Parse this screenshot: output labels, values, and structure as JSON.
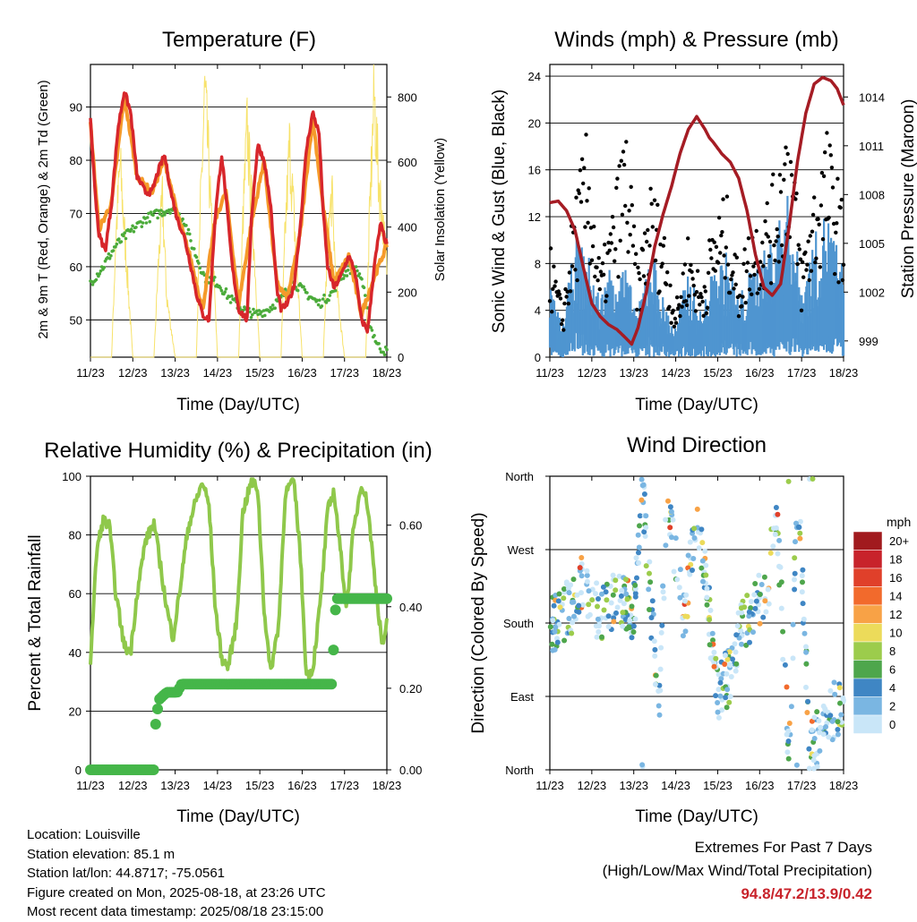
{
  "days": [
    "11/23",
    "12/23",
    "13/23",
    "14/23",
    "15/23",
    "16/23",
    "17/23",
    "18/23"
  ],
  "temperature": {
    "title": "Temperature (F)",
    "xlabel": "Time (Day/UTC)",
    "ylabel_left": "2m & 9m T (Red, Orange) & 2m Td (Green)",
    "ylabel_right": "Solar Insolation (Yellow)",
    "left_ticks": [
      "50",
      "60",
      "70",
      "80",
      "90"
    ],
    "right_ticks": [
      "0",
      "200",
      "400",
      "600",
      "800"
    ],
    "colors": {
      "t2m": "#d7262b",
      "t9m": "#f59a2a",
      "td": "#4bab3a",
      "solar": "#f7e26a"
    }
  },
  "winds": {
    "title": "Winds (mph) & Pressure (mb)",
    "xlabel": "Time (Day/UTC)",
    "ylabel_left": "Sonic Wind & Gust (Blue, Black)",
    "ylabel_right": "Station Pressure (Maroon)",
    "left_ticks": [
      "0",
      "4",
      "8",
      "12",
      "16",
      "20",
      "24"
    ],
    "right_ticks": [
      "999",
      "1002",
      "1005",
      "1008",
      "1011",
      "1014"
    ],
    "colors": {
      "wind": "#4f95d0",
      "gust": "#000000",
      "pressure": "#a51c24"
    }
  },
  "humidity": {
    "title": "Relative Humidity (%) & Precipitation (in)",
    "xlabel": "Time (Day/UTC)",
    "ylabel_left": "Percent & Total Rainfall",
    "left_ticks": [
      "0",
      "20",
      "40",
      "60",
      "80",
      "100"
    ],
    "right_ticks": [
      "0.00",
      "0.20",
      "0.40",
      "0.60"
    ],
    "colors": {
      "rh": "#8fc84b",
      "precip": "#45b649"
    }
  },
  "direction": {
    "title": "Wind Direction",
    "xlabel": "Time (Day/UTC)",
    "ylabel_left": "Direction (Colored By Speed)",
    "dir_labels": [
      "North",
      "East",
      "South",
      "West",
      "North"
    ],
    "legend_title": "mph",
    "legend_labels": [
      "20+",
      "18",
      "16",
      "14",
      "12",
      "10",
      "8",
      "6",
      "4",
      "2",
      "0"
    ],
    "legend_colors": [
      "#a11a1e",
      "#c8232b",
      "#e0402a",
      "#f26a2c",
      "#f8a246",
      "#ecdb5a",
      "#9ccc4c",
      "#4ea64c",
      "#3f86c4",
      "#7ab6e2",
      "#c9e6f8"
    ]
  },
  "info": {
    "location": "Location: Louisville",
    "elevation": "Station elevation: 85.1 m",
    "latlon": "Station lat/lon: 44.8717; -75.0561",
    "created": "Figure created on Mon, 2025-08-18, at 23:26 UTC",
    "recent": "Most recent data timestamp: 2025/08/18 23:15:00"
  },
  "extremes": {
    "line1": "Extremes For Past 7 Days",
    "line2": "(High/Low/Max Wind/Total Precipitation)",
    "values": "94.8/47.2/13.9/0.42"
  },
  "chart_data": [
    {
      "type": "line",
      "title": "Temperature (F)",
      "xlabel": "Time (Day/UTC)",
      "ylabel": "2m & 9m T (Red, Orange) & 2m Td (Green)",
      "y2label": "Solar Insolation (Yellow)",
      "x_range_days": [
        11,
        18
      ],
      "ylim": [
        43,
        98
      ],
      "y2lim": [
        0,
        900
      ],
      "series": [
        {
          "name": "2m T",
          "x": [
            11.0,
            11.1,
            11.2,
            11.35,
            11.5,
            11.65,
            11.8,
            11.95,
            12.1,
            12.3,
            12.45,
            12.6,
            12.75,
            12.9,
            13.05,
            13.2,
            13.35,
            13.5,
            13.65,
            13.8,
            13.95,
            14.1,
            14.2,
            14.35,
            14.5,
            14.6,
            14.7,
            14.8,
            14.95,
            15.1,
            15.25,
            15.4,
            15.5,
            15.65,
            15.8,
            15.95,
            16.1,
            16.25,
            16.4,
            16.5,
            16.6,
            16.75,
            16.9,
            17.1,
            17.25,
            17.4,
            17.55,
            17.7,
            17.85,
            18.0
          ],
          "values": [
            88,
            75,
            66,
            63,
            72,
            86,
            93,
            89,
            77,
            74,
            74,
            78,
            81,
            74,
            69,
            66,
            61,
            55,
            51,
            50,
            70,
            81,
            73,
            60,
            52,
            51,
            50,
            69,
            83,
            80,
            72,
            56,
            52,
            53,
            56,
            67,
            82,
            89,
            85,
            70,
            60,
            56,
            58,
            62,
            59,
            50,
            48,
            60,
            68,
            64
          ]
        },
        {
          "name": "9m T",
          "x": [
            11.0,
            11.2,
            11.5,
            11.8,
            12.1,
            12.45,
            12.75,
            13.05,
            13.35,
            13.65,
            13.95,
            14.2,
            14.5,
            14.8,
            15.1,
            15.4,
            15.65,
            15.95,
            16.25,
            16.5,
            16.75,
            17.1,
            17.4,
            17.7,
            18.0
          ],
          "values": [
            87,
            67,
            72,
            92,
            77,
            74,
            80,
            70,
            62,
            52,
            69,
            74,
            53,
            68,
            80,
            57,
            54,
            66,
            88,
            71,
            57,
            62,
            51,
            58,
            64
          ]
        },
        {
          "name": "2m Td",
          "x": [
            11.0,
            11.3,
            11.6,
            12.0,
            12.3,
            12.6,
            12.9,
            13.2,
            13.4,
            13.7,
            14.0,
            14.3,
            14.6,
            14.9,
            15.2,
            15.5,
            15.8,
            16.1,
            16.4,
            16.7,
            16.9,
            17.2,
            17.4,
            17.6,
            17.8,
            18.0
          ],
          "values": [
            57,
            60,
            64,
            67,
            69,
            70,
            71,
            69,
            64,
            58,
            57,
            54,
            52,
            51,
            52,
            54,
            57,
            55,
            53,
            55,
            58,
            60,
            58,
            49,
            45,
            44
          ]
        },
        {
          "name": "Solar Insolation",
          "x": [
            11.0,
            11.5,
            11.6,
            11.7,
            11.8,
            12.0,
            12.5,
            12.6,
            12.7,
            12.8,
            13.0,
            13.5,
            13.6,
            13.7,
            13.8,
            14.0,
            14.5,
            14.6,
            14.7,
            14.8,
            15.0,
            15.5,
            15.6,
            15.7,
            15.8,
            16.0,
            16.5,
            16.6,
            16.7,
            16.8,
            17.0,
            17.5,
            17.6,
            17.7,
            17.8,
            18.0
          ],
          "values": [
            0,
            0,
            400,
            640,
            420,
            0,
            0,
            300,
            520,
            200,
            0,
            0,
            500,
            880,
            620,
            0,
            0,
            450,
            760,
            520,
            0,
            0,
            420,
            700,
            480,
            0,
            0,
            380,
            540,
            250,
            0,
            0,
            500,
            870,
            600,
            300
          ]
        }
      ]
    },
    {
      "type": "line",
      "title": "Winds (mph) & Pressure (mb)",
      "xlabel": "Time (Day/UTC)",
      "ylabel": "Sonic Wind & Gust (Blue, Black)",
      "y2label": "Station Pressure (Maroon)",
      "x_range_days": [
        11,
        18
      ],
      "ylim": [
        0,
        25
      ],
      "y2lim": [
        998,
        1016
      ],
      "series": [
        {
          "name": "Sonic Wind",
          "x": [
            11.0,
            11.3,
            11.6,
            11.9,
            12.2,
            12.5,
            12.8,
            13.1,
            13.4,
            13.7,
            14.0,
            14.3,
            14.6,
            14.9,
            15.2,
            15.5,
            15.8,
            16.1,
            16.4,
            16.7,
            17.0,
            17.3,
            17.6,
            17.9,
            18.0
          ],
          "values": [
            5,
            2,
            8,
            7,
            4,
            7,
            6,
            3,
            8,
            4,
            2,
            6,
            3,
            6,
            7,
            4,
            6,
            7,
            9,
            11,
            5,
            8,
            10,
            7,
            6
          ]
        },
        {
          "name": "Gust",
          "x": [
            11.0,
            11.3,
            11.6,
            11.9,
            12.2,
            12.5,
            12.8,
            13.1,
            13.4,
            13.7,
            14.0,
            14.3,
            14.6,
            14.9,
            15.2,
            15.5,
            15.8,
            16.1,
            16.4,
            16.7,
            17.0,
            17.3,
            17.6,
            17.9,
            18.0
          ],
          "values": [
            9,
            4,
            13,
            18,
            7,
            12,
            19,
            7,
            14,
            11,
            4,
            10,
            6,
            11,
            13,
            7,
            11,
            12,
            15,
            21,
            8,
            14,
            18,
            14,
            11
          ]
        },
        {
          "name": "Station Pressure",
          "x": [
            11.0,
            11.2,
            11.4,
            11.6,
            11.8,
            12.0,
            12.2,
            12.4,
            12.6,
            12.8,
            12.95,
            13.1,
            13.3,
            13.5,
            13.7,
            13.9,
            14.1,
            14.3,
            14.5,
            14.7,
            14.8,
            14.9,
            15.1,
            15.3,
            15.5,
            15.7,
            15.9,
            16.1,
            16.3,
            16.5,
            16.7,
            16.9,
            17.1,
            17.3,
            17.5,
            17.7,
            17.85,
            18.0
          ],
          "values": [
            1007.5,
            1007.6,
            1007.0,
            1005.8,
            1003.5,
            1001.3,
            1000.5,
            1000.0,
            999.7,
            999.2,
            998.8,
            999.8,
            1002.0,
            1004.8,
            1006.8,
            1008.5,
            1010.5,
            1012.0,
            1012.8,
            1012.0,
            1011.5,
            1011.2,
            1010.5,
            1010.0,
            1009.0,
            1007.0,
            1004.3,
            1002.3,
            1001.8,
            1002.5,
            1006.0,
            1010.0,
            1013.0,
            1014.8,
            1015.2,
            1015.0,
            1014.5,
            1013.5
          ]
        }
      ]
    },
    {
      "type": "line",
      "title": "Relative Humidity (%) & Precipitation (in)",
      "xlabel": "Time (Day/UTC)",
      "ylabel": "Percent & Total Rainfall",
      "x_range_days": [
        11,
        18
      ],
      "ylim": [
        0,
        100
      ],
      "y2lim": [
        0,
        0.72
      ],
      "series": [
        {
          "name": "Relative Humidity",
          "x": [
            11.0,
            11.15,
            11.3,
            11.45,
            11.6,
            11.8,
            11.95,
            12.1,
            12.3,
            12.5,
            12.65,
            12.8,
            12.95,
            13.1,
            13.3,
            13.5,
            13.65,
            13.8,
            13.95,
            14.1,
            14.25,
            14.45,
            14.6,
            14.8,
            14.95,
            15.1,
            15.25,
            15.45,
            15.6,
            15.8,
            15.95,
            16.1,
            16.25,
            16.45,
            16.6,
            16.75,
            16.9,
            17.05,
            17.2,
            17.4,
            17.55,
            17.75,
            17.9,
            18.0
          ],
          "values": [
            37,
            75,
            85,
            83,
            60,
            42,
            40,
            60,
            78,
            84,
            70,
            55,
            45,
            60,
            82,
            92,
            98,
            90,
            55,
            38,
            35,
            50,
            88,
            98,
            96,
            55,
            33,
            50,
            94,
            99,
            75,
            32,
            34,
            60,
            88,
            95,
            75,
            55,
            80,
            98,
            90,
            60,
            42,
            50
          ]
        },
        {
          "name": "Total Rainfall",
          "x": [
            11.0,
            12.5,
            12.55,
            12.6,
            12.7,
            12.8,
            13.05,
            13.15,
            16.7,
            16.8,
            18.0
          ],
          "values": [
            0.0,
            0.0,
            0.08,
            0.17,
            0.18,
            0.19,
            0.19,
            0.21,
            0.21,
            0.42,
            0.42
          ]
        }
      ]
    },
    {
      "type": "scatter",
      "title": "Wind Direction",
      "xlabel": "Time (Day/UTC)",
      "ylabel": "Direction (Colored By Speed)",
      "x_range_days": [
        11,
        18
      ],
      "y_categories": [
        "North",
        "East",
        "South",
        "West",
        "North"
      ],
      "ylim": [
        0,
        360
      ],
      "legend": {
        "title": "mph",
        "labels": [
          "20+",
          "18",
          "16",
          "14",
          "12",
          "10",
          "8",
          "6",
          "4",
          "2",
          "0"
        ]
      },
      "series": [
        {
          "name": "Direction",
          "x": [
            11.1,
            11.5,
            11.8,
            12.2,
            12.6,
            13.0,
            13.2,
            13.6,
            13.8,
            14.2,
            14.5,
            14.9,
            15.0,
            15.3,
            15.6,
            15.9,
            16.2,
            16.4,
            16.7,
            16.9,
            17.2,
            17.6,
            17.8
          ],
          "values": [
            180,
            200,
            230,
            185,
            210,
            190,
            345,
            70,
            340,
            180,
            330,
            140,
            90,
            120,
            180,
            200,
            215,
            330,
            10,
            350,
            20,
            60,
            75
          ]
        }
      ]
    }
  ]
}
